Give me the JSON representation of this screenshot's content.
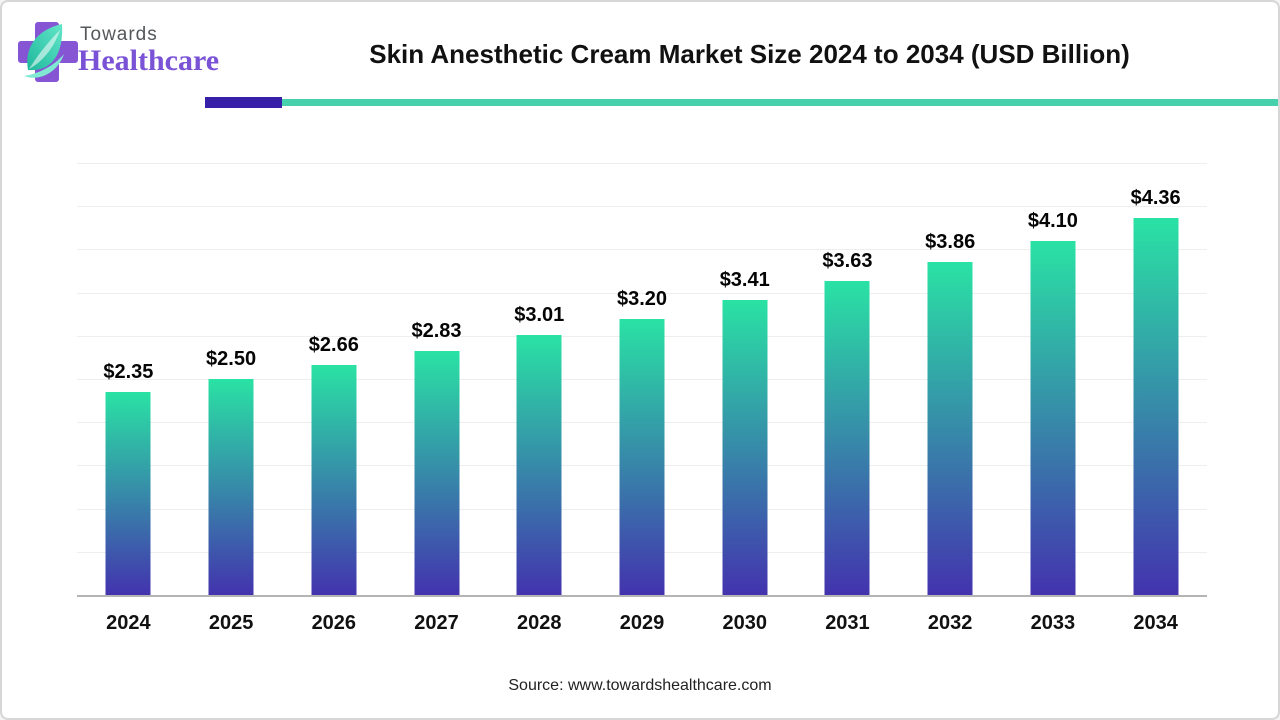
{
  "logo": {
    "line1": "Towards",
    "line2": "Healthcare",
    "line1_color": "#54585b",
    "line2_color": "#7952d6",
    "cross_color": "#8655d4",
    "leaf_color_start": "#63e6c9",
    "leaf_color_end": "#1fb89c"
  },
  "header": {
    "title": "Skin Anesthetic Cream Market Size 2024 to 2034 (USD Billion)",
    "accent_bar_color": "#371fa8",
    "accent_line_color": "#47d0ac"
  },
  "chart_data": {
    "type": "bar",
    "title": "Skin Anesthetic Cream Market Size 2024 to 2034 (USD Billion)",
    "unit": "USD Billion",
    "categories": [
      "2024",
      "2025",
      "2026",
      "2027",
      "2028",
      "2029",
      "2030",
      "2031",
      "2032",
      "2033",
      "2034"
    ],
    "values": [
      2.35,
      2.5,
      2.66,
      2.83,
      3.01,
      3.2,
      3.41,
      3.63,
      3.86,
      4.1,
      4.36
    ],
    "value_labels": [
      "$2.35",
      "$2.50",
      "$2.66",
      "$2.83",
      "$3.01",
      "$3.20",
      "$3.41",
      "$3.63",
      "$3.86",
      "$4.10",
      "$4.36"
    ],
    "xlabel": "",
    "ylabel": "",
    "ylim": [
      0,
      5
    ],
    "gridline_step": 0.5,
    "grid": "horizontal",
    "legend": "none",
    "bar_gradient_top": "#2ae2a4",
    "bar_gradient_bottom": "#4333ae",
    "gridline_color": "#eeeeee",
    "axis_line_color": "#b5b5b5"
  },
  "footer": {
    "source": "Source: www.towardshealthcare.com"
  }
}
